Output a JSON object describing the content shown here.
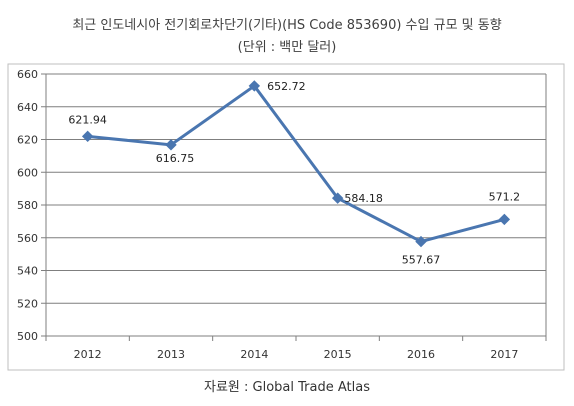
{
  "chart_data": {
    "type": "line",
    "title": "최근 인도네시아 전기회로차단기(기타)(HS Code 853690) 수입 규모 및 동향",
    "subtitle": "(단위 : 백만 달러)",
    "categories": [
      "2012",
      "2013",
      "2014",
      "2015",
      "2016",
      "2017"
    ],
    "series": [
      {
        "values": [
          621.94,
          616.75,
          652.72,
          584.18,
          557.67,
          571.2
        ]
      }
    ],
    "data_labels": [
      "621.94",
      "616.75",
      "652.72",
      "584.18",
      "557.67",
      "571.2"
    ],
    "xlabel": "",
    "ylabel": "",
    "ylim": [
      500,
      660
    ],
    "yticks": [
      "500",
      "520",
      "540",
      "560",
      "580",
      "600",
      "620",
      "640",
      "660"
    ],
    "grid": true,
    "line_color": "#4a76b0"
  },
  "source": "자료원 : Global Trade Atlas"
}
